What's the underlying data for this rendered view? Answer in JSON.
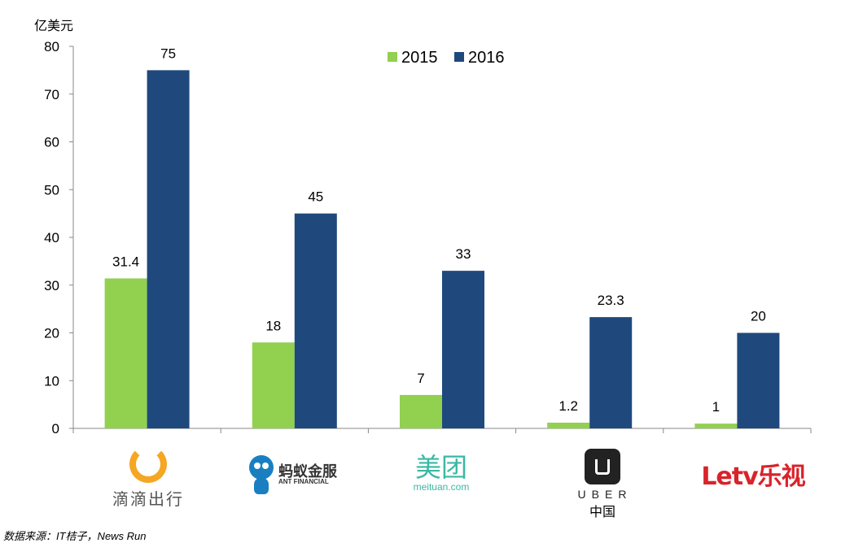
{
  "chart_data": {
    "type": "bar",
    "title": "",
    "unit_label": "亿美元",
    "categories": [
      "滴滴出行",
      "蚂蚁金服",
      "美团",
      "UBER 中国",
      "乐视"
    ],
    "series": [
      {
        "name": "2015",
        "values": [
          31.4,
          18,
          7,
          1.2,
          1
        ],
        "color": "#92d050",
        "labels": [
          "31.4",
          "18",
          "7",
          "1.2",
          "1"
        ]
      },
      {
        "name": "2016",
        "values": [
          75,
          45,
          33,
          23.3,
          20
        ],
        "color": "#1f497d",
        "labels": [
          "75",
          "45",
          "33",
          "23.3",
          "20"
        ]
      }
    ],
    "ylim": [
      0,
      80
    ],
    "yticks": [
      "0",
      "10",
      "20",
      "30",
      "40",
      "50",
      "60",
      "70",
      "80"
    ],
    "legend": "top-center",
    "grid": false
  },
  "logos": {
    "didi": {
      "text": "滴滴出行",
      "color": "#f5a623"
    },
    "ant": {
      "text": "蚂蚁金服",
      "subtext": "ANT FINANCIAL",
      "color": "#1a7fc1"
    },
    "meituan": {
      "text": "美团",
      "subtext": "meituan.com",
      "color": "#3ab8a4"
    },
    "uber": {
      "text": "UBER",
      "subtext": "中国"
    },
    "letv": {
      "text": "Letv乐视",
      "color": "#d9232b"
    }
  },
  "source": "数据来源：IT桔子，News Run"
}
